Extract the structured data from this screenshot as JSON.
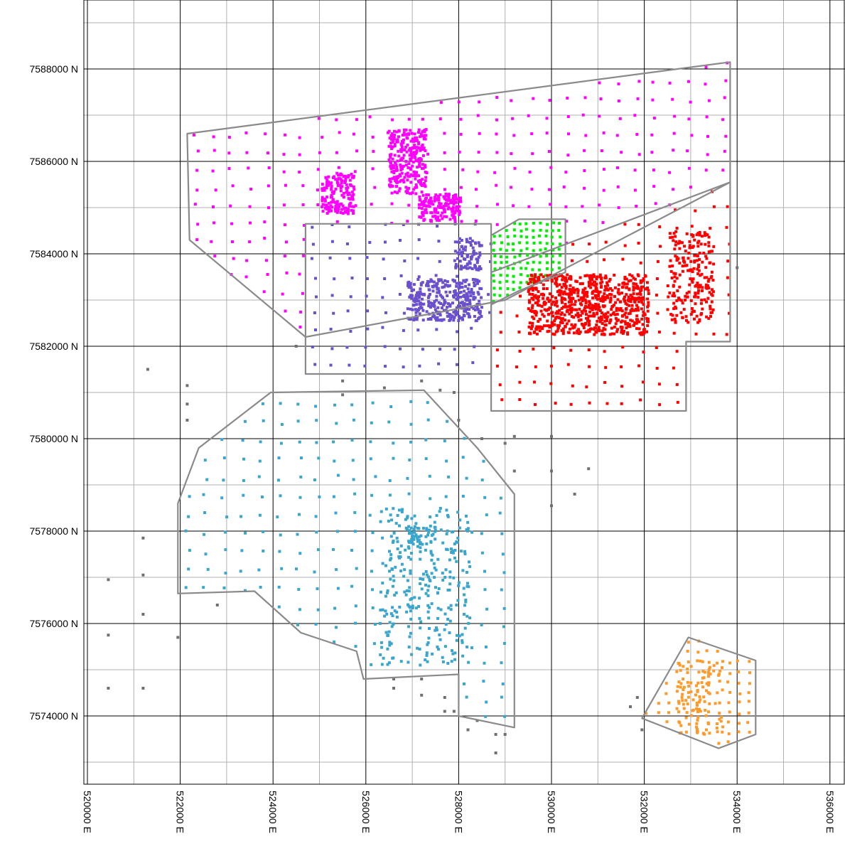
{
  "map": {
    "y_axis_labels": [
      {
        "value": 7588000,
        "text": "7588000 N"
      },
      {
        "value": 7586000,
        "text": "7586000 N"
      },
      {
        "value": 7584000,
        "text": "7584000 N"
      },
      {
        "value": 7582000,
        "text": "7582000 N"
      },
      {
        "value": 7580000,
        "text": "7580000 N"
      },
      {
        "value": 7578000,
        "text": "7578000 N"
      },
      {
        "value": 7576000,
        "text": "7576000 N"
      },
      {
        "value": 7574000,
        "text": "7574000 N"
      }
    ],
    "x_axis_labels": [
      {
        "value": 520000,
        "text": "520000 E"
      },
      {
        "value": 522000,
        "text": "522000 E"
      },
      {
        "value": 524000,
        "text": "524000 E"
      },
      {
        "value": 526000,
        "text": "526000 E"
      },
      {
        "value": 528000,
        "text": "528000 E"
      },
      {
        "value": 530000,
        "text": "530000 E"
      },
      {
        "value": 532000,
        "text": "532000 E"
      },
      {
        "value": 534000,
        "text": "534000 E"
      },
      {
        "value": 536000,
        "text": "536000 E"
      }
    ],
    "colors": {
      "magenta": "#ff00ff",
      "purple": "#6a50cc",
      "green": "#00ee00",
      "red": "#ff0000",
      "cyan": "#3aa6cc",
      "orange": "#ff9a2a",
      "gray_points": "#707070",
      "boundary": "#8a8a8a",
      "major_grid": "#000000",
      "minor_grid": "#b0b0b0"
    },
    "zones": [
      {
        "name": "magenta",
        "boundary": [
          [
            522150,
            7586600
          ],
          [
            533850,
            7588150
          ],
          [
            533850,
            7585550
          ],
          [
            529000,
            7583000
          ],
          [
            524700,
            7582200
          ],
          [
            522200,
            7584300
          ]
        ]
      },
      {
        "name": "purple",
        "boundary": [
          [
            524700,
            7584650
          ],
          [
            528700,
            7584650
          ],
          [
            528700,
            7581400
          ],
          [
            524700,
            7581400
          ]
        ]
      },
      {
        "name": "green",
        "boundary": [
          [
            528700,
            7584400
          ],
          [
            529300,
            7584750
          ],
          [
            530300,
            7584750
          ],
          [
            530300,
            7583600
          ],
          [
            529300,
            7583200
          ],
          [
            528700,
            7582900
          ]
        ]
      },
      {
        "name": "red",
        "boundary": [
          [
            528700,
            7583600
          ],
          [
            533850,
            7585550
          ],
          [
            533850,
            7582100
          ],
          [
            532900,
            7582100
          ],
          [
            532900,
            7580600
          ],
          [
            528700,
            7580600
          ]
        ]
      },
      {
        "name": "cyan",
        "boundary": [
          [
            523950,
            7581000
          ],
          [
            527250,
            7581050
          ],
          [
            528400,
            7579800
          ],
          [
            529200,
            7578800
          ],
          [
            529200,
            7573750
          ],
          [
            528000,
            7574000
          ],
          [
            528000,
            7574900
          ],
          [
            525950,
            7574800
          ],
          [
            525800,
            7575400
          ],
          [
            524600,
            7575800
          ],
          [
            523600,
            7576700
          ],
          [
            521950,
            7576650
          ],
          [
            521950,
            7578600
          ],
          [
            522400,
            7579800
          ]
        ]
      },
      {
        "name": "orange",
        "boundary": [
          [
            531950,
            7573950
          ],
          [
            532950,
            7575700
          ],
          [
            534400,
            7575200
          ],
          [
            534400,
            7573600
          ],
          [
            533600,
            7573300
          ]
        ]
      }
    ]
  }
}
